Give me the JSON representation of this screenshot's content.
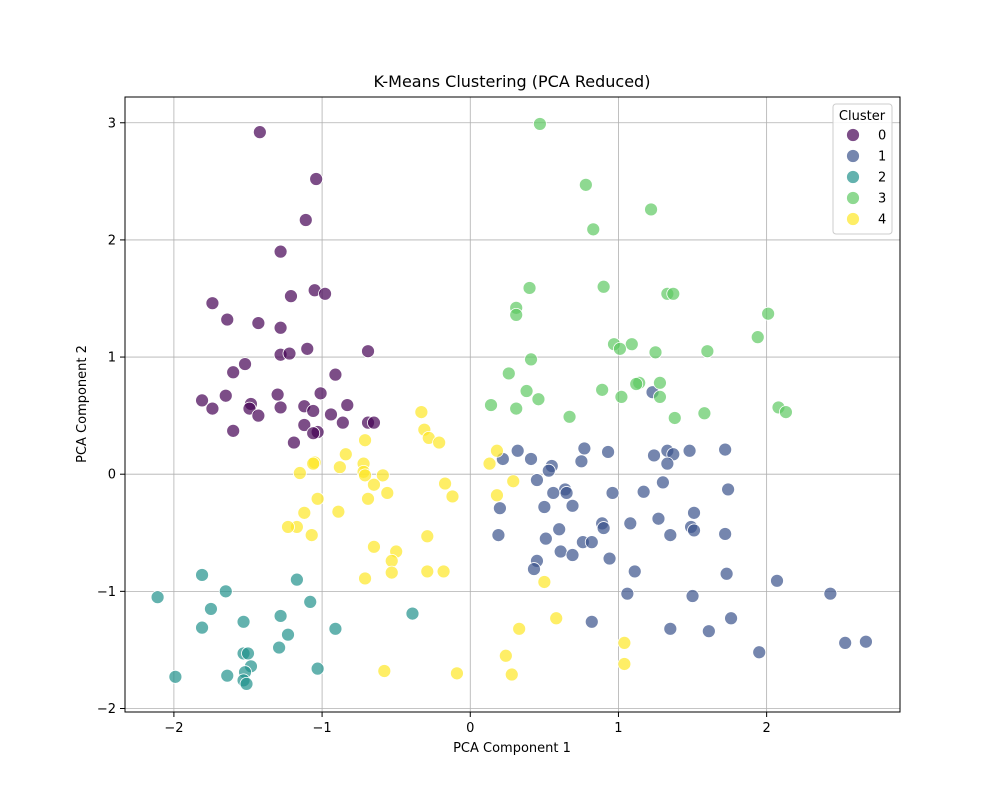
{
  "chart_data": {
    "type": "scatter",
    "title": "K-Means Clustering (PCA Reduced)",
    "xlabel": "PCA Component 1",
    "ylabel": "PCA Component 2",
    "xlim": [
      -2.33,
      2.9
    ],
    "ylim": [
      -2.03,
      3.22
    ],
    "xticks": [
      -2,
      -1,
      0,
      1,
      2
    ],
    "yticks": [
      -2,
      -1,
      0,
      1,
      2,
      3
    ],
    "xtick_labels": [
      "−2",
      "−1",
      "0",
      "1",
      "2"
    ],
    "ytick_labels": [
      "−2",
      "−1",
      "0",
      "1",
      "2",
      "3"
    ],
    "grid": true,
    "legend": {
      "title": "Cluster",
      "placement": "top-right"
    },
    "series": [
      {
        "name": "0",
        "color": "#440154",
        "points": [
          [
            -1.42,
            2.92
          ],
          [
            -1.04,
            2.52
          ],
          [
            -1.11,
            2.17
          ],
          [
            -1.28,
            1.9
          ],
          [
            -1.05,
            1.57
          ],
          [
            -0.98,
            1.54
          ],
          [
            -1.21,
            1.52
          ],
          [
            -1.74,
            1.46
          ],
          [
            -1.64,
            1.32
          ],
          [
            -1.43,
            1.29
          ],
          [
            -1.28,
            1.25
          ],
          [
            -1.1,
            1.07
          ],
          [
            -1.28,
            1.02
          ],
          [
            -1.22,
            1.03
          ],
          [
            -0.69,
            1.05
          ],
          [
            -1.52,
            0.94
          ],
          [
            -1.6,
            0.87
          ],
          [
            -0.91,
            0.85
          ],
          [
            -1.01,
            0.69
          ],
          [
            -1.3,
            0.68
          ],
          [
            -1.65,
            0.67
          ],
          [
            -1.81,
            0.63
          ],
          [
            -1.48,
            0.6
          ],
          [
            -0.83,
            0.59
          ],
          [
            -1.12,
            0.58
          ],
          [
            -1.28,
            0.57
          ],
          [
            -1.49,
            0.56
          ],
          [
            -1.74,
            0.56
          ],
          [
            -1.06,
            0.54
          ],
          [
            -0.94,
            0.51
          ],
          [
            -1.43,
            0.5
          ],
          [
            -0.69,
            0.44
          ],
          [
            -0.65,
            0.44
          ],
          [
            -0.86,
            0.44
          ],
          [
            -1.12,
            0.42
          ],
          [
            -1.6,
            0.37
          ],
          [
            -1.03,
            0.36
          ],
          [
            -1.06,
            0.35
          ],
          [
            -1.19,
            0.27
          ]
        ]
      },
      {
        "name": "1",
        "color": "#3b528b",
        "points": [
          [
            1.23,
            0.7
          ],
          [
            0.77,
            0.22
          ],
          [
            1.72,
            0.21
          ],
          [
            0.32,
            0.2
          ],
          [
            1.48,
            0.2
          ],
          [
            1.33,
            0.2
          ],
          [
            0.93,
            0.19
          ],
          [
            1.24,
            0.16
          ],
          [
            1.37,
            0.17
          ],
          [
            0.22,
            0.13
          ],
          [
            0.41,
            0.13
          ],
          [
            0.75,
            0.11
          ],
          [
            1.33,
            0.09
          ],
          [
            0.55,
            0.07
          ],
          [
            0.53,
            0.03
          ],
          [
            0.45,
            -0.05
          ],
          [
            1.3,
            -0.07
          ],
          [
            0.64,
            -0.13
          ],
          [
            1.74,
            -0.13
          ],
          [
            0.56,
            -0.16
          ],
          [
            0.96,
            -0.16
          ],
          [
            0.65,
            -0.16
          ],
          [
            1.17,
            -0.15
          ],
          [
            0.69,
            -0.27
          ],
          [
            0.5,
            -0.28
          ],
          [
            0.2,
            -0.29
          ],
          [
            1.51,
            -0.33
          ],
          [
            1.27,
            -0.38
          ],
          [
            0.89,
            -0.42
          ],
          [
            1.08,
            -0.42
          ],
          [
            0.9,
            -0.46
          ],
          [
            1.49,
            -0.45
          ],
          [
            1.51,
            -0.48
          ],
          [
            0.6,
            -0.47
          ],
          [
            1.35,
            -0.52
          ],
          [
            1.72,
            -0.51
          ],
          [
            0.19,
            -0.52
          ],
          [
            0.51,
            -0.55
          ],
          [
            0.76,
            -0.58
          ],
          [
            0.82,
            -0.58
          ],
          [
            0.61,
            -0.66
          ],
          [
            0.69,
            -0.69
          ],
          [
            0.94,
            -0.72
          ],
          [
            0.45,
            -0.74
          ],
          [
            0.43,
            -0.81
          ],
          [
            1.11,
            -0.83
          ],
          [
            1.73,
            -0.85
          ],
          [
            2.07,
            -0.91
          ],
          [
            1.06,
            -1.02
          ],
          [
            2.43,
            -1.02
          ],
          [
            1.5,
            -1.04
          ],
          [
            1.76,
            -1.23
          ],
          [
            0.82,
            -1.26
          ],
          [
            1.35,
            -1.32
          ],
          [
            1.61,
            -1.34
          ],
          [
            2.67,
            -1.43
          ],
          [
            2.53,
            -1.44
          ],
          [
            1.95,
            -1.52
          ]
        ]
      },
      {
        "name": "2",
        "color": "#21918c",
        "points": [
          [
            -1.81,
            -0.86
          ],
          [
            -1.17,
            -0.9
          ],
          [
            -2.11,
            -1.05
          ],
          [
            -1.65,
            -1.0
          ],
          [
            -1.08,
            -1.09
          ],
          [
            -1.75,
            -1.15
          ],
          [
            -0.39,
            -1.19
          ],
          [
            -1.28,
            -1.21
          ],
          [
            -1.53,
            -1.26
          ],
          [
            -1.81,
            -1.31
          ],
          [
            -0.91,
            -1.32
          ],
          [
            -1.23,
            -1.37
          ],
          [
            -1.29,
            -1.48
          ],
          [
            -1.53,
            -1.53
          ],
          [
            -1.5,
            -1.53
          ],
          [
            -1.03,
            -1.66
          ],
          [
            -1.48,
            -1.64
          ],
          [
            -1.52,
            -1.69
          ],
          [
            -1.64,
            -1.72
          ],
          [
            -1.99,
            -1.73
          ],
          [
            -1.53,
            -1.76
          ],
          [
            -1.51,
            -1.79
          ]
        ]
      },
      {
        "name": "3",
        "color": "#5ec962",
        "points": [
          [
            0.47,
            2.99
          ],
          [
            0.78,
            2.47
          ],
          [
            1.22,
            2.26
          ],
          [
            0.83,
            2.09
          ],
          [
            0.9,
            1.6
          ],
          [
            0.4,
            1.59
          ],
          [
            1.33,
            1.54
          ],
          [
            1.37,
            1.54
          ],
          [
            0.31,
            1.42
          ],
          [
            0.31,
            1.36
          ],
          [
            2.01,
            1.37
          ],
          [
            1.94,
            1.17
          ],
          [
            0.97,
            1.11
          ],
          [
            1.09,
            1.11
          ],
          [
            1.01,
            1.07
          ],
          [
            1.25,
            1.04
          ],
          [
            1.6,
            1.05
          ],
          [
            0.41,
            0.98
          ],
          [
            0.26,
            0.86
          ],
          [
            1.28,
            0.78
          ],
          [
            1.14,
            0.78
          ],
          [
            1.12,
            0.77
          ],
          [
            0.89,
            0.72
          ],
          [
            0.38,
            0.71
          ],
          [
            1.02,
            0.66
          ],
          [
            1.28,
            0.66
          ],
          [
            0.46,
            0.64
          ],
          [
            0.14,
            0.59
          ],
          [
            2.08,
            0.57
          ],
          [
            2.13,
            0.53
          ],
          [
            0.31,
            0.56
          ],
          [
            1.58,
            0.52
          ],
          [
            0.67,
            0.49
          ],
          [
            1.38,
            0.48
          ]
        ]
      },
      {
        "name": "4",
        "color": "#fde725",
        "points": [
          [
            -0.33,
            0.53
          ],
          [
            -0.31,
            0.38
          ],
          [
            -0.28,
            0.31
          ],
          [
            -0.21,
            0.27
          ],
          [
            -0.71,
            0.29
          ],
          [
            -0.84,
            0.17
          ],
          [
            0.18,
            0.2
          ],
          [
            -1.05,
            0.1
          ],
          [
            -1.06,
            0.09
          ],
          [
            -0.72,
            0.09
          ],
          [
            -0.88,
            0.06
          ],
          [
            0.13,
            0.09
          ],
          [
            -1.15,
            0.01
          ],
          [
            -0.72,
            0.02
          ],
          [
            -0.59,
            -0.01
          ],
          [
            -0.71,
            -0.01
          ],
          [
            -0.65,
            -0.09
          ],
          [
            0.29,
            -0.06
          ],
          [
            -0.17,
            -0.08
          ],
          [
            -0.56,
            -0.16
          ],
          [
            0.18,
            -0.18
          ],
          [
            -0.12,
            -0.19
          ],
          [
            -1.03,
            -0.21
          ],
          [
            -0.69,
            -0.21
          ],
          [
            -1.12,
            -0.33
          ],
          [
            -0.89,
            -0.32
          ],
          [
            -1.17,
            -0.45
          ],
          [
            -1.23,
            -0.45
          ],
          [
            -1.07,
            -0.52
          ],
          [
            -0.29,
            -0.53
          ],
          [
            -0.65,
            -0.62
          ],
          [
            -0.5,
            -0.66
          ],
          [
            -0.53,
            -0.74
          ],
          [
            -0.18,
            -0.83
          ],
          [
            -0.29,
            -0.83
          ],
          [
            -0.53,
            -0.84
          ],
          [
            -0.71,
            -0.89
          ],
          [
            0.5,
            -0.92
          ],
          [
            0.58,
            -1.23
          ],
          [
            0.33,
            -1.32
          ],
          [
            1.04,
            -1.44
          ],
          [
            0.24,
            -1.55
          ],
          [
            1.04,
            -1.62
          ],
          [
            -0.58,
            -1.68
          ],
          [
            -0.09,
            -1.7
          ],
          [
            0.28,
            -1.71
          ]
        ]
      }
    ]
  }
}
